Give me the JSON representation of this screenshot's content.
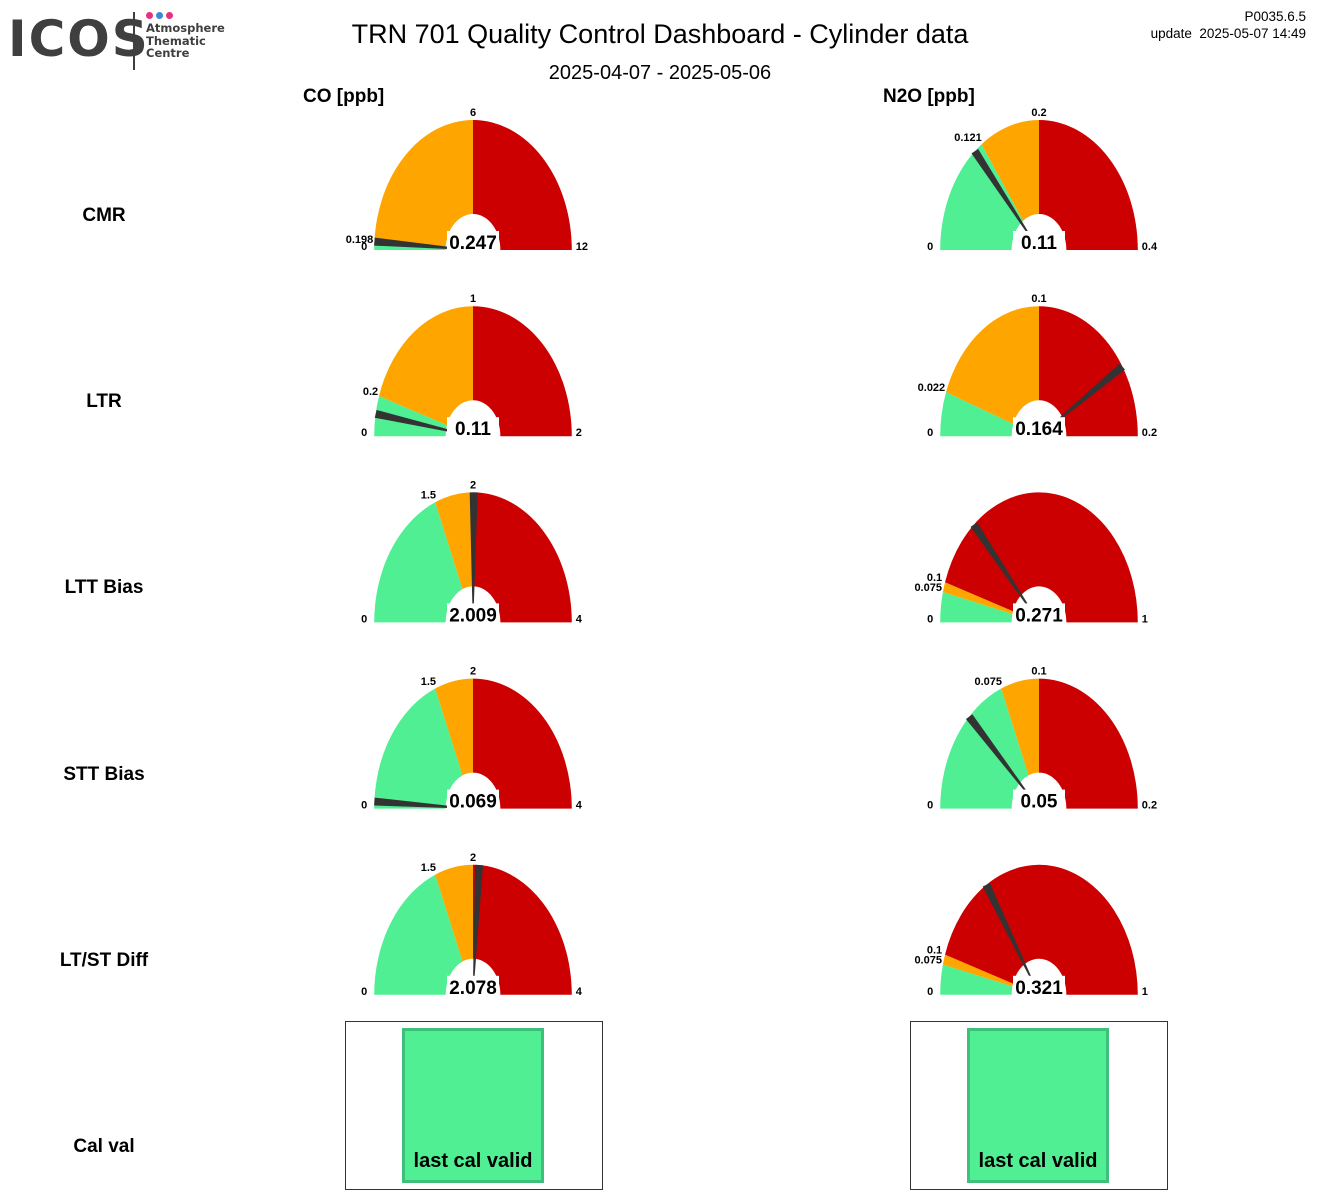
{
  "logo": {
    "wordmark": "ICOS",
    "subtitle_lines": [
      "Atmosphere",
      "Thematic",
      "Centre"
    ],
    "dot_colors": [
      "#e6317c",
      "#3a8ad6",
      "#e6317c"
    ],
    "text_color": "#3f3f3f"
  },
  "header": {
    "title": "TRN 701 Quality Control Dashboard - Cylinder data",
    "date_range": "2025-04-07 - 2025-05-06",
    "version": "P0035.6.5",
    "update": "update  2025-05-07 14:49"
  },
  "colors": {
    "good": "#50ef93",
    "warning": "#ffa500",
    "bad": "#cc0000",
    "needle": "#333333",
    "cal_valid": "#50ef93"
  },
  "columns": [
    {
      "label": "CO [ppb]"
    },
    {
      "label": "N2O [ppb]"
    }
  ],
  "rows": [
    {
      "label": "CMR"
    },
    {
      "label": "LTR"
    },
    {
      "label": "LTT Bias"
    },
    {
      "label": "STT Bias"
    },
    {
      "label": "LT/ST Diff"
    },
    {
      "label": "Cal val"
    }
  ],
  "chart_data": {
    "type": "gauge",
    "gauges": [
      {
        "row": "CMR",
        "column": "CO [ppb]",
        "min": 0,
        "max": 12,
        "green_end": 0.198,
        "orange_end": 6,
        "value": 0.247,
        "tick_labels": {
          "min": "0",
          "green_end": "0.198",
          "orange_end": "6",
          "max": "12"
        },
        "value_label": "0.247"
      },
      {
        "row": "CMR",
        "column": "N2O [ppb]",
        "min": 0,
        "max": 0.4,
        "green_end": 0.121,
        "orange_end": 0.2,
        "value": 0.11,
        "tick_labels": {
          "min": "0",
          "green_end": "0.121",
          "orange_end": "0.2",
          "max": "0.4"
        },
        "value_label": "0.11"
      },
      {
        "row": "LTR",
        "column": "CO [ppb]",
        "min": 0,
        "max": 2,
        "green_end": 0.2,
        "orange_end": 1,
        "value": 0.11,
        "tick_labels": {
          "min": "0",
          "green_end": "0.2",
          "orange_end": "1",
          "max": "2"
        },
        "value_label": "0.11"
      },
      {
        "row": "LTR",
        "column": "N2O [ppb]",
        "min": 0,
        "max": 0.2,
        "green_end": 0.022,
        "orange_end": 0.1,
        "value": 0.164,
        "tick_labels": {
          "min": "0",
          "green_end": "0.022",
          "orange_end": "0.1",
          "max": "0.2"
        },
        "value_label": "0.164"
      },
      {
        "row": "LTT Bias",
        "column": "CO [ppb]",
        "min": 0,
        "max": 4,
        "green_end": 1.5,
        "orange_end": 2,
        "value": 2.009,
        "tick_labels": {
          "min": "0",
          "green_end": "1.5",
          "orange_end": "2",
          "max": "4"
        },
        "value_label": "2.009"
      },
      {
        "row": "LTT Bias",
        "column": "N2O [ppb]",
        "min": 0,
        "max": 1,
        "green_end": 0.075,
        "orange_end": 0.1,
        "value": 0.271,
        "tick_labels": {
          "min": "0",
          "green_end": "0.075",
          "orange_end": "0.1",
          "max": "1"
        },
        "value_label": "0.271"
      },
      {
        "row": "STT Bias",
        "column": "CO [ppb]",
        "min": 0,
        "max": 4,
        "green_end": 1.5,
        "orange_end": 2,
        "value": 0.069,
        "tick_labels": {
          "min": "0",
          "green_end": "1.5",
          "orange_end": "2",
          "max": "4"
        },
        "value_label": "0.069"
      },
      {
        "row": "STT Bias",
        "column": "N2O [ppb]",
        "min": 0,
        "max": 0.2,
        "green_end": 0.075,
        "orange_end": 0.1,
        "value": 0.05,
        "tick_labels": {
          "min": "0",
          "green_end": "0.075",
          "orange_end": "0.1",
          "max": "0.2"
        },
        "value_label": "0.05"
      },
      {
        "row": "LT/ST Diff",
        "column": "CO [ppb]",
        "min": 0,
        "max": 4,
        "green_end": 1.5,
        "orange_end": 2,
        "value": 2.078,
        "tick_labels": {
          "min": "0",
          "green_end": "1.5",
          "orange_end": "2",
          "max": "4"
        },
        "value_label": "2.078"
      },
      {
        "row": "LT/ST Diff",
        "column": "N2O [ppb]",
        "min": 0,
        "max": 1,
        "green_end": 0.075,
        "orange_end": 0.1,
        "value": 0.321,
        "tick_labels": {
          "min": "0",
          "green_end": "0.075",
          "orange_end": "0.1",
          "max": "1"
        },
        "value_label": "0.321"
      }
    ],
    "cal_status": [
      {
        "row": "Cal val",
        "column": "CO [ppb]",
        "text": "last cal valid",
        "status": "valid"
      },
      {
        "row": "Cal val",
        "column": "N2O [ppb]",
        "text": "last cal valid",
        "status": "valid"
      }
    ]
  }
}
